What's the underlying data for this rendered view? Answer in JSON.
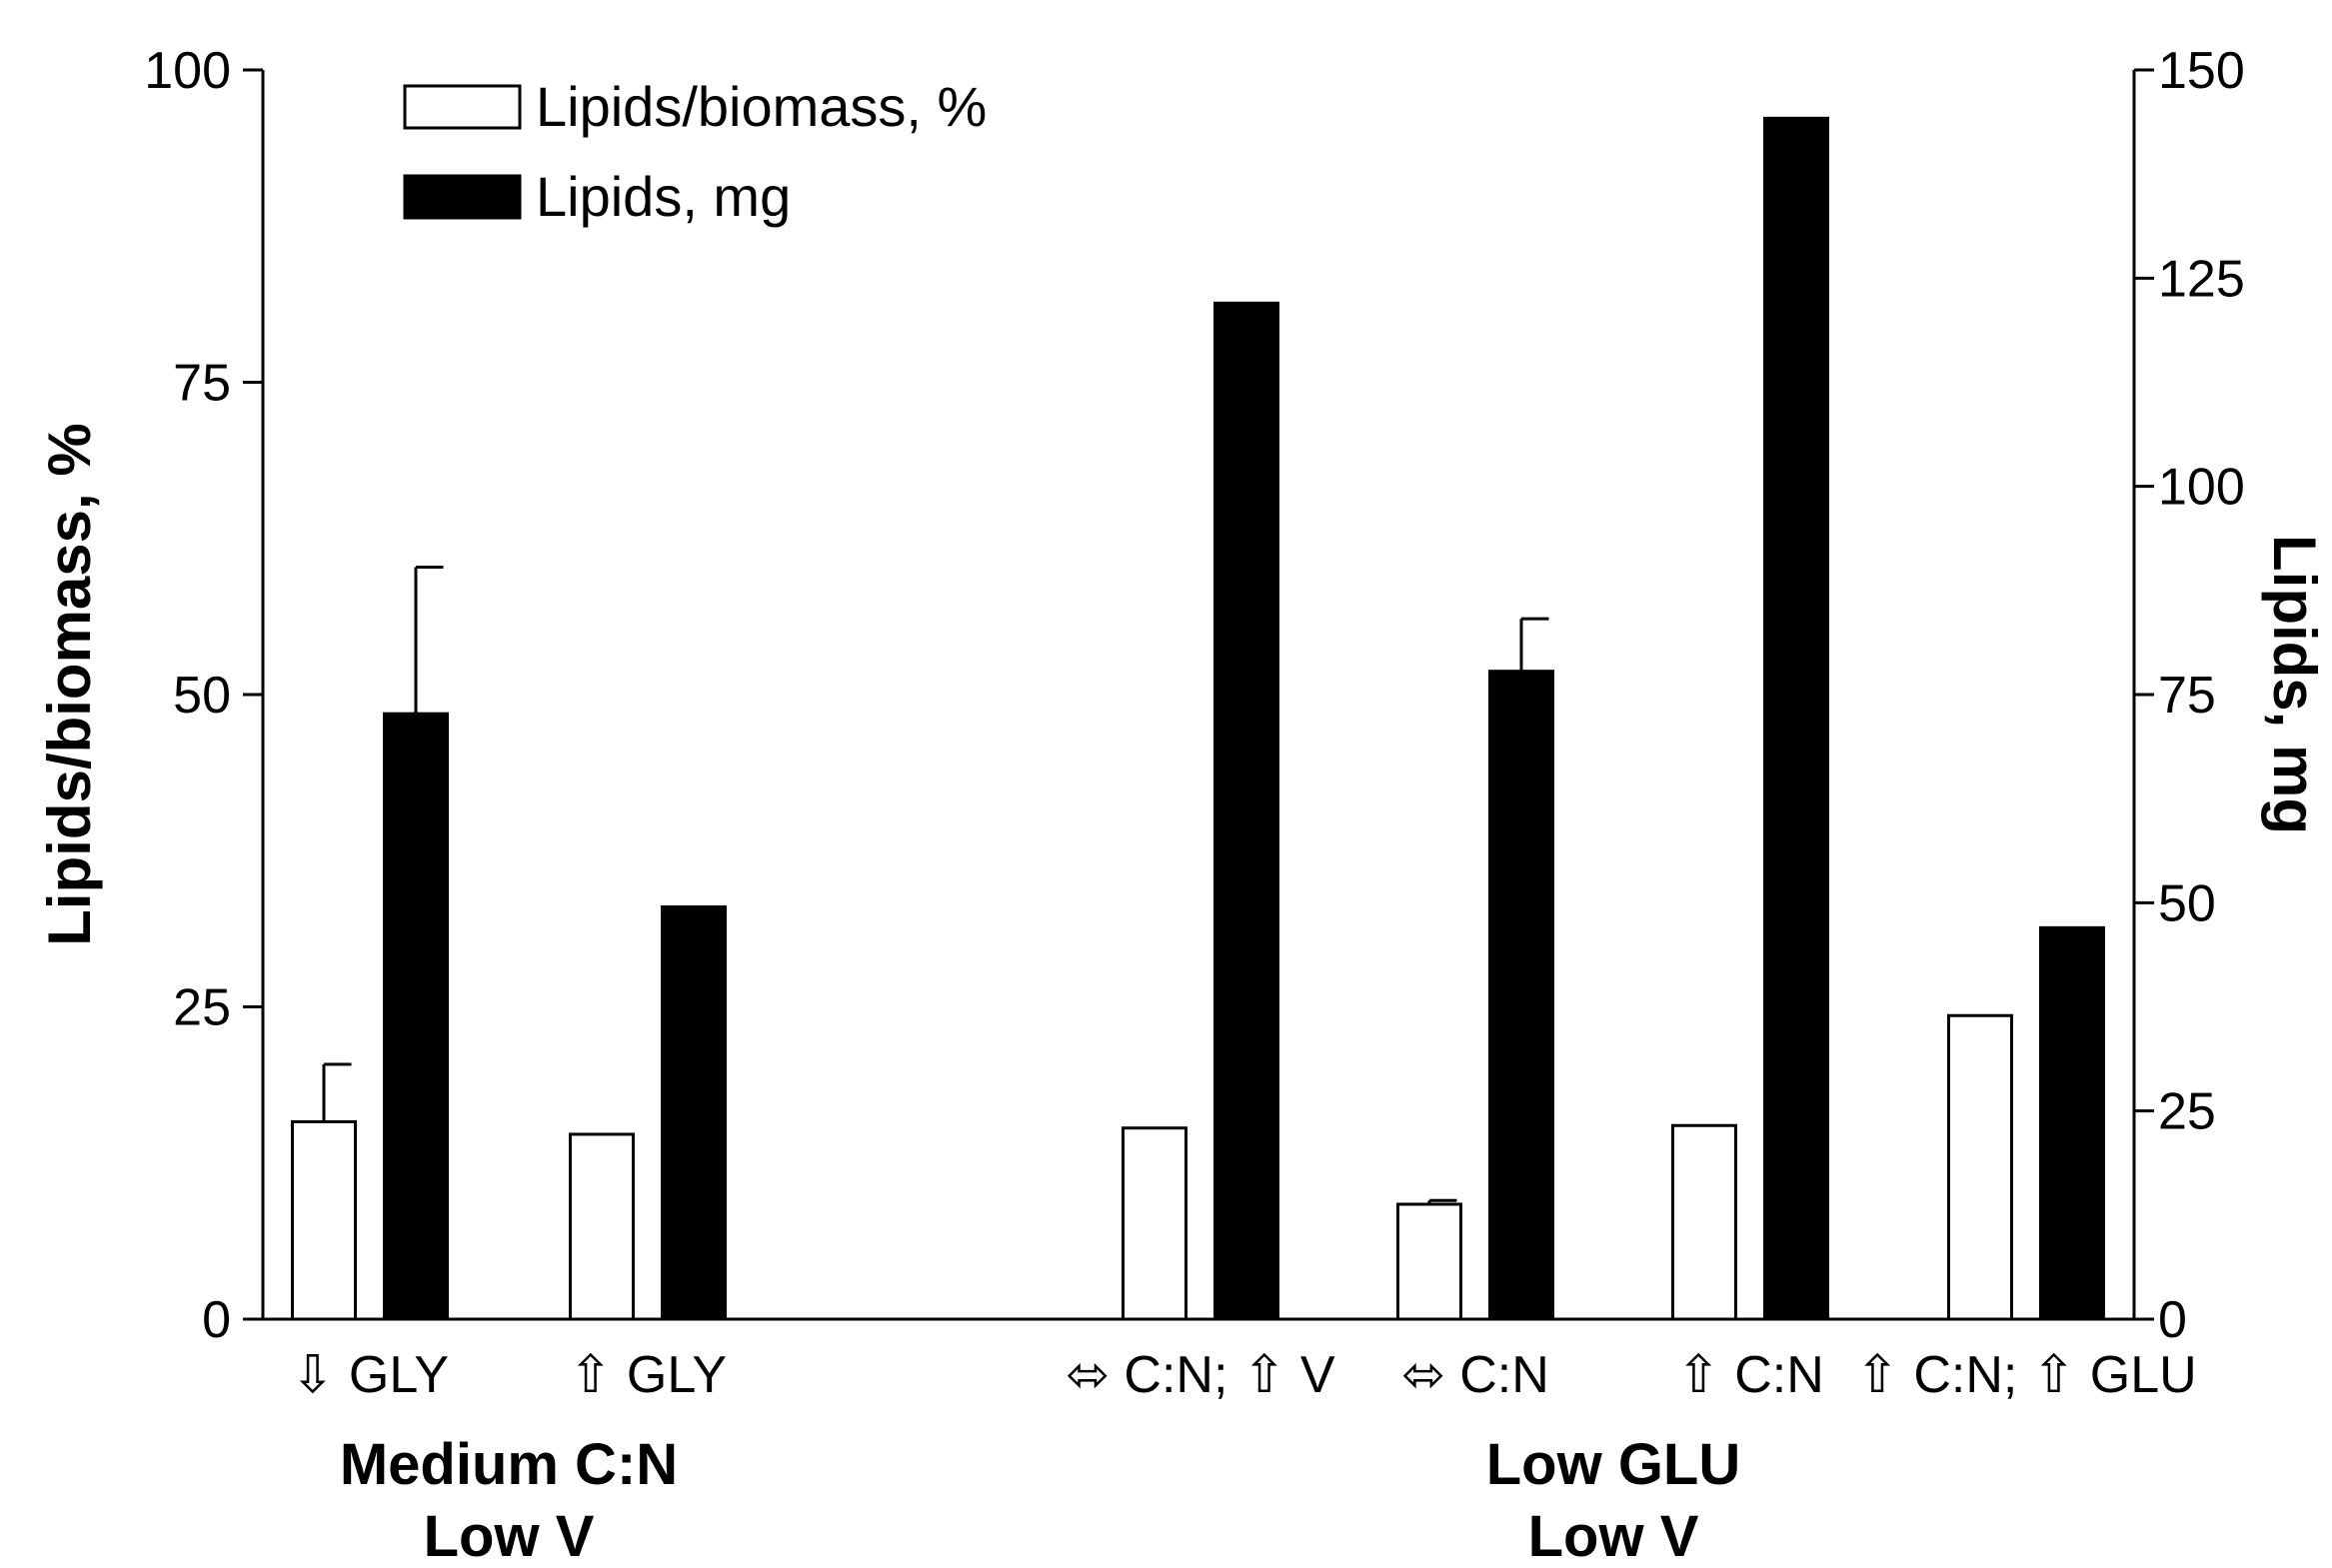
{
  "chart_data": {
    "type": "bar",
    "categories": [
      "⇩ GLY",
      "⇧ GLY",
      "⬄ C:N; ⇧ V",
      "⬄ C:N",
      "⇧ C:N",
      "⇧ C:N; ⇧ GLU"
    ],
    "groups": [
      {
        "label_lines": [
          "Medium C:N",
          "Low V"
        ],
        "category_indices": [
          0,
          1
        ]
      },
      {
        "label_lines": [
          "Low GLU",
          "Low V"
        ],
        "category_indices": [
          2,
          3,
          4,
          5
        ]
      }
    ],
    "series": [
      {
        "name": "Lipids/biomass, %",
        "axis": "left",
        "fill": "#ffffff",
        "values": [
          15.8,
          14.8,
          15.3,
          9.2,
          15.5,
          24.3
        ],
        "errors": [
          4.6,
          null,
          null,
          0.3,
          null,
          null
        ]
      },
      {
        "name": "Lipids, mg",
        "axis": "right",
        "fill": "#000000",
        "values": [
          72.7,
          49.5,
          122.0,
          77.8,
          144.2,
          47.0
        ],
        "errors": [
          17.6,
          null,
          null,
          6.3,
          null,
          null
        ]
      }
    ],
    "y_left": {
      "label": "Lipids/biomass, %",
      "ylim": [
        0,
        100
      ],
      "ticks": [
        0,
        25,
        50,
        75,
        100
      ]
    },
    "y_right": {
      "label": "Lipids, mg",
      "ylim": [
        0,
        150
      ],
      "ticks": [
        0,
        25,
        50,
        75,
        100,
        125,
        150
      ]
    },
    "legend_position": "top-left",
    "grid": false
  }
}
